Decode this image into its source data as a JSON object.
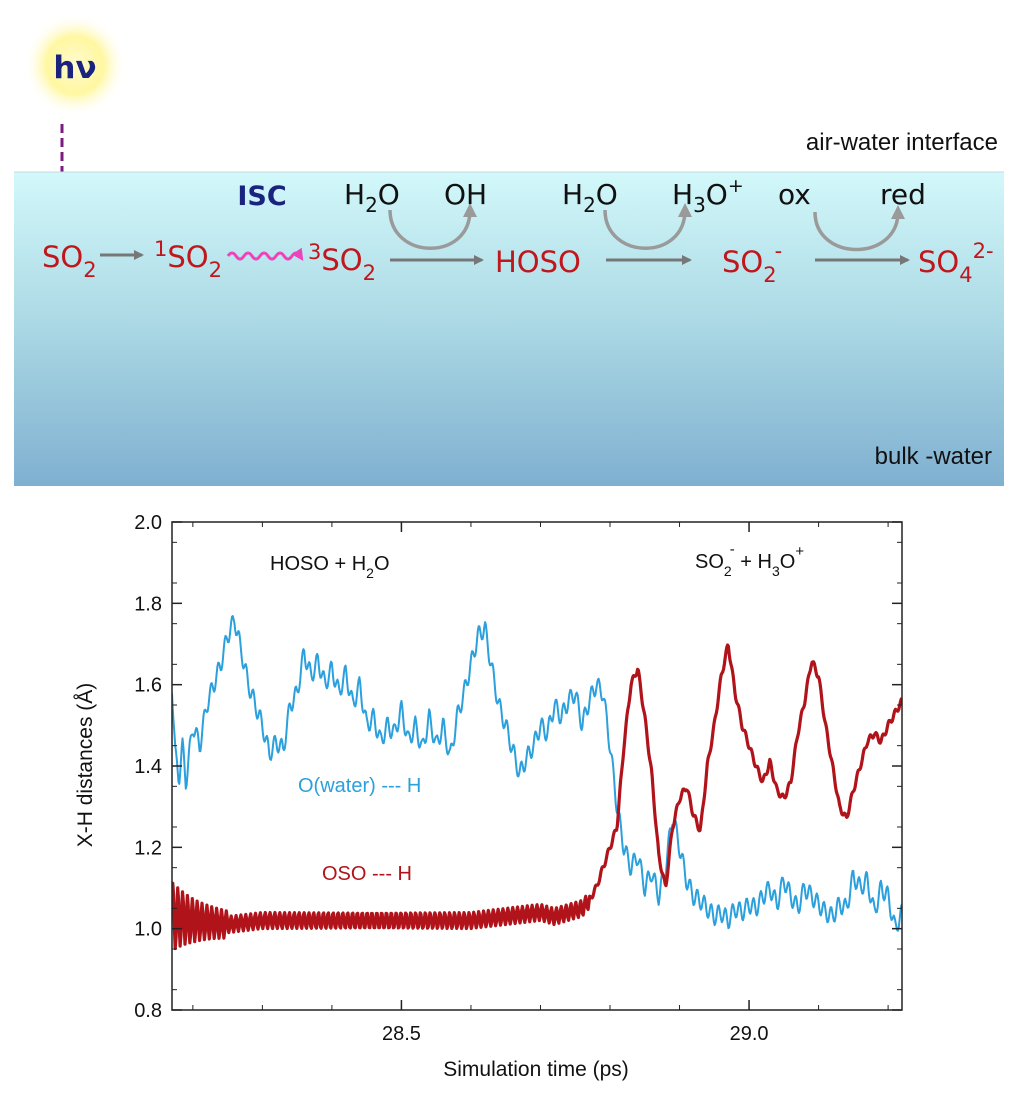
{
  "scheme": {
    "photon_label_main": "h",
    "photon_label_nu": "ν",
    "interface_label": "air-water interface",
    "bulk_label": "bulk -water",
    "isc_label": "ISC",
    "species": {
      "so2": "SO",
      "so2_sub": "2",
      "singlet_sup": "1",
      "singlet_main": "SO",
      "singlet_sub": "2",
      "triplet_sup": "3",
      "triplet_main": "SO",
      "triplet_sub": "2",
      "hoso": "HOSO",
      "so2_minus_main": "SO",
      "so2_minus_sub": "2",
      "so2_minus_sup": "-",
      "so4_main": "SO",
      "so4_sub": "4",
      "so4_sup": "2-"
    },
    "reactants": {
      "h2o_1_main": "H",
      "h2o_1_sub": "2",
      "h2o_1_end": "O",
      "oh": "OH",
      "h2o_2_main": "H",
      "h2o_2_sub": "2",
      "h2o_2_end": "O",
      "h3o_main": "H",
      "h3o_sub": "3",
      "h3o_end": "O",
      "h3o_sup": "+",
      "ox": "ox",
      "red": "red"
    },
    "colors": {
      "species": "#c0161c",
      "isc": "#1a237e",
      "wavy_arrow": "#ee44bb",
      "photon_arrow": "#7b1c7f",
      "water_top": "#d2f8fa",
      "water_bottom": "#7fb0d0"
    }
  },
  "chart_data": {
    "type": "line",
    "xlabel": "Simulation time (ps)",
    "ylabel": "X-H distances (Å)",
    "xlim": [
      28.17,
      29.22
    ],
    "ylim": [
      0.8,
      2.0
    ],
    "x_ticks": [
      "28.5",
      "29.0"
    ],
    "y_ticks": [
      "0.8",
      "1.0",
      "1.2",
      "1.4",
      "1.6",
      "1.8",
      "2.0"
    ],
    "annotations": {
      "left_main": "HOSO + H",
      "left_sub": "2",
      "left_end": "O",
      "right_main": "SO",
      "right_sub1": "2",
      "right_sup1": "-",
      "right_mid": " + H",
      "right_sub2": "3",
      "right_end": "O",
      "right_sup2": "+"
    },
    "series": [
      {
        "name": "O(water) --- H",
        "color": "#2ba0dc",
        "x": [
          28.17,
          28.175,
          28.18,
          28.185,
          28.19,
          28.2,
          28.21,
          28.22,
          28.23,
          28.24,
          28.25,
          28.26,
          28.27,
          28.28,
          28.29,
          28.3,
          28.31,
          28.32,
          28.33,
          28.34,
          28.35,
          28.36,
          28.37,
          28.38,
          28.39,
          28.4,
          28.41,
          28.42,
          28.43,
          28.44,
          28.45,
          28.46,
          28.47,
          28.48,
          28.49,
          28.5,
          28.51,
          28.52,
          28.53,
          28.54,
          28.55,
          28.56,
          28.57,
          28.58,
          28.59,
          28.6,
          28.61,
          28.62,
          28.63,
          28.64,
          28.65,
          28.66,
          28.67,
          28.68,
          28.69,
          28.7,
          28.71,
          28.72,
          28.73,
          28.74,
          28.75,
          28.76,
          28.77,
          28.78,
          28.79,
          28.8,
          28.81,
          28.82,
          28.83,
          28.84,
          28.85,
          28.86,
          28.87,
          28.88,
          28.89,
          28.9,
          28.91,
          28.92,
          28.93,
          28.94,
          28.95,
          28.96,
          28.97,
          28.98,
          28.99,
          29.0,
          29.01,
          29.02,
          29.03,
          29.04,
          29.05,
          29.06,
          29.07,
          29.08,
          29.09,
          29.1,
          29.11,
          29.12,
          29.13,
          29.14,
          29.15,
          29.16,
          29.17,
          29.18,
          29.19,
          29.2,
          29.21,
          29.22
        ],
        "values": [
          1.6,
          1.42,
          1.37,
          1.45,
          1.36,
          1.5,
          1.45,
          1.55,
          1.6,
          1.65,
          1.72,
          1.76,
          1.68,
          1.6,
          1.55,
          1.5,
          1.43,
          1.46,
          1.44,
          1.55,
          1.58,
          1.68,
          1.62,
          1.66,
          1.6,
          1.64,
          1.58,
          1.63,
          1.55,
          1.6,
          1.5,
          1.52,
          1.46,
          1.5,
          1.48,
          1.54,
          1.46,
          1.5,
          1.44,
          1.52,
          1.45,
          1.5,
          1.42,
          1.52,
          1.58,
          1.65,
          1.72,
          1.74,
          1.64,
          1.55,
          1.5,
          1.44,
          1.38,
          1.42,
          1.45,
          1.5,
          1.48,
          1.55,
          1.52,
          1.56,
          1.58,
          1.5,
          1.56,
          1.6,
          1.58,
          1.45,
          1.3,
          1.2,
          1.15,
          1.18,
          1.1,
          1.14,
          1.08,
          1.15,
          1.28,
          1.2,
          1.12,
          1.08,
          1.07,
          1.05,
          1.03,
          1.04,
          1.02,
          1.05,
          1.04,
          1.06,
          1.05,
          1.08,
          1.1,
          1.06,
          1.12,
          1.08,
          1.05,
          1.1,
          1.08,
          1.06,
          1.04,
          1.03,
          1.06,
          1.05,
          1.13,
          1.1,
          1.12,
          1.04,
          1.1,
          1.08,
          1.0,
          1.04
        ]
      },
      {
        "name": "OSO --- H",
        "color": "#b0141a",
        "x": [
          28.17,
          28.2,
          28.25,
          28.3,
          28.35,
          28.4,
          28.45,
          28.5,
          28.55,
          28.6,
          28.65,
          28.7,
          28.72,
          28.74,
          28.76,
          28.77,
          28.78,
          28.79,
          28.8,
          28.81,
          28.82,
          28.83,
          28.84,
          28.85,
          28.86,
          28.87,
          28.88,
          28.89,
          28.9,
          28.91,
          28.92,
          28.93,
          28.94,
          28.95,
          28.96,
          28.97,
          28.98,
          28.99,
          29.0,
          29.01,
          29.02,
          29.03,
          29.04,
          29.05,
          29.06,
          29.07,
          29.08,
          29.09,
          29.1,
          29.11,
          29.12,
          29.13,
          29.14,
          29.15,
          29.16,
          29.17,
          29.18,
          29.19,
          29.2,
          29.21,
          29.22
        ],
        "values": [
          1.03,
          1.02,
          1.01,
          1.02,
          1.02,
          1.02,
          1.02,
          1.02,
          1.02,
          1.02,
          1.03,
          1.04,
          1.03,
          1.04,
          1.05,
          1.07,
          1.1,
          1.15,
          1.2,
          1.25,
          1.45,
          1.6,
          1.64,
          1.52,
          1.38,
          1.18,
          1.1,
          1.25,
          1.32,
          1.35,
          1.28,
          1.24,
          1.4,
          1.5,
          1.62,
          1.7,
          1.58,
          1.5,
          1.45,
          1.4,
          1.36,
          1.41,
          1.34,
          1.32,
          1.36,
          1.48,
          1.56,
          1.66,
          1.62,
          1.5,
          1.4,
          1.3,
          1.27,
          1.34,
          1.4,
          1.46,
          1.48,
          1.46,
          1.5,
          1.53,
          1.56
        ]
      }
    ],
    "grid": false,
    "legend": "inline text labels"
  }
}
